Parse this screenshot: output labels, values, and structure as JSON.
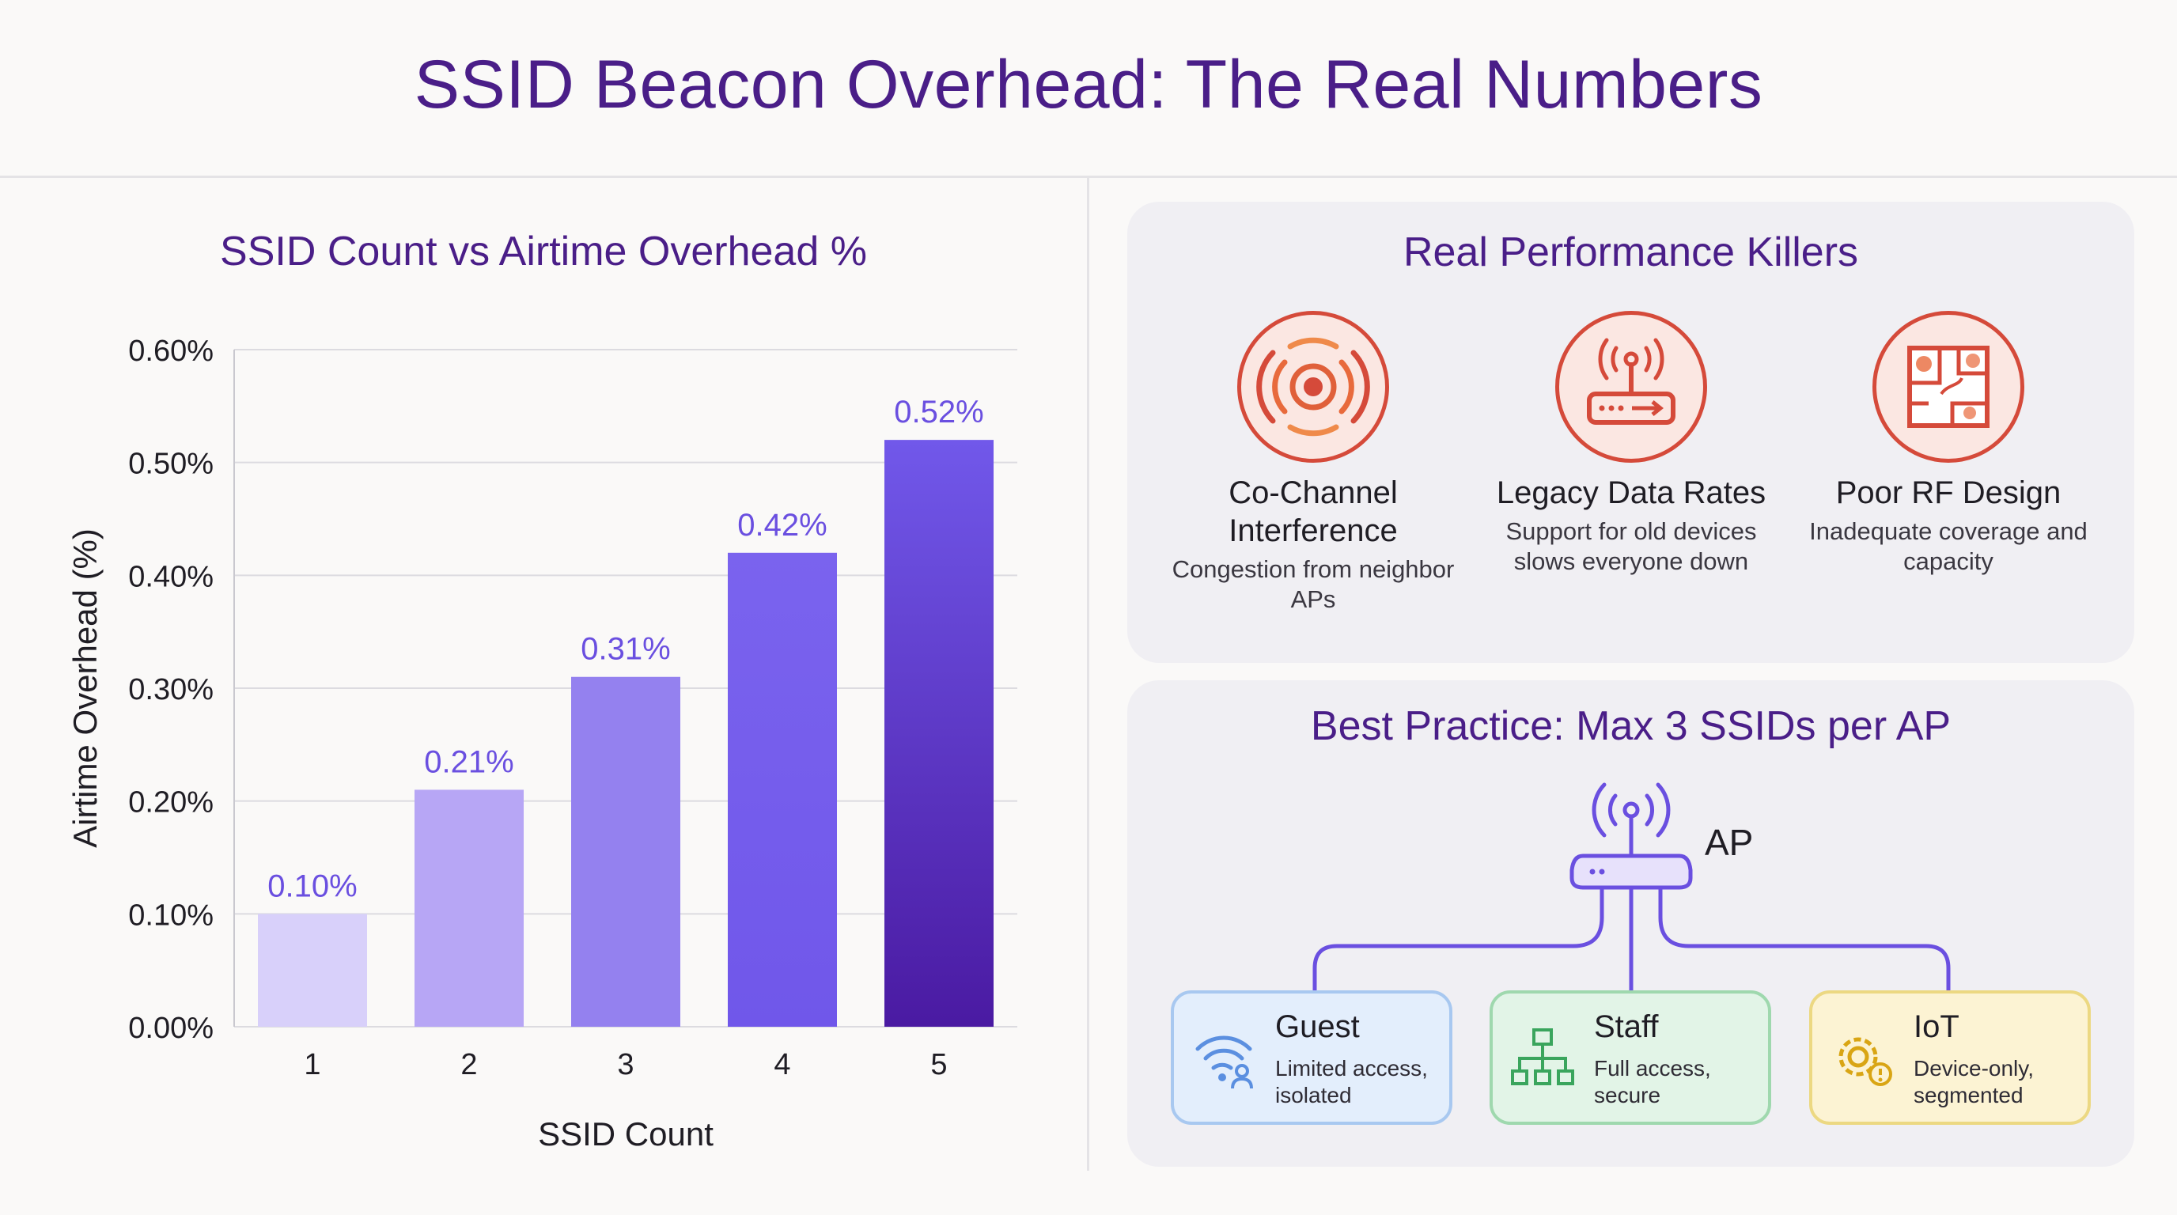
{
  "title": "SSID Beacon Overhead: The Real Numbers",
  "chart_data": {
    "type": "bar",
    "title": "SSID Count vs Airtime Overhead %",
    "xlabel": "SSID Count",
    "ylabel": "Airtime Overhead (%)",
    "categories": [
      "1",
      "2",
      "3",
      "4",
      "5"
    ],
    "values": [
      0.1,
      0.21,
      0.31,
      0.42,
      0.52
    ],
    "data_labels": [
      "0.10%",
      "0.21%",
      "0.31%",
      "0.42%",
      "0.52%"
    ],
    "ylim": [
      0,
      0.6
    ],
    "yticks": [
      0,
      0.1,
      0.2,
      0.3,
      0.4,
      0.5,
      0.6
    ],
    "ytick_labels": [
      "0.00%",
      "0.10%",
      "0.20%",
      "0.30%",
      "0.40%",
      "0.50%",
      "0.60%"
    ],
    "grid": true,
    "colors": [
      "#d8d0fa",
      "#b7a6f5",
      "#9481ef",
      "#7057ea",
      "#4a1aa2"
    ],
    "label_color": "#6a4fe0"
  },
  "killers": {
    "title": "Real Performance Killers",
    "items": [
      {
        "name": "Co-Channel Interference",
        "desc": "Congestion from neighbor APs",
        "icon": "interference-icon"
      },
      {
        "name": "Legacy Data Rates",
        "desc": "Support for old devices slows everyone down",
        "icon": "router-icon"
      },
      {
        "name": "Poor RF Design",
        "desc": "Inadequate coverage and capacity",
        "icon": "floorplan-icon"
      }
    ]
  },
  "best_practice": {
    "title": "Best Practice: Max 3 SSIDs per AP",
    "ap_label": "AP",
    "networks": [
      {
        "name": "Guest",
        "desc": "Limited access, isolated",
        "icon": "guest-wifi-icon",
        "color": "#5b8fe0"
      },
      {
        "name": "Staff",
        "desc": "Full access, secure",
        "icon": "network-tree-icon",
        "color": "#3aa55d"
      },
      {
        "name": "IoT",
        "desc": "Device-only, segmented",
        "icon": "gear-alert-icon",
        "color": "#d9a514"
      }
    ]
  }
}
